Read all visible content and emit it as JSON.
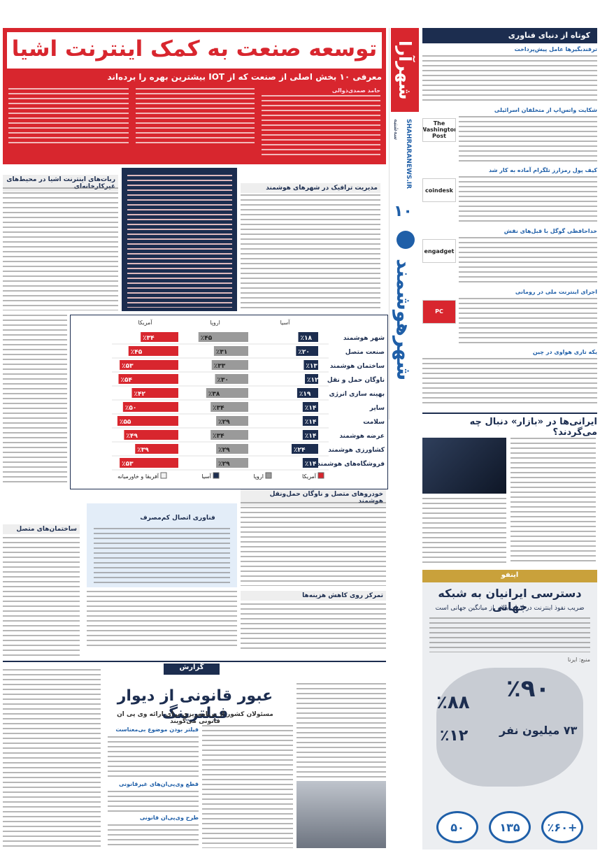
{
  "masthead": {
    "logo": "شهرآرا",
    "section": "شهرهوشمند",
    "page": "۱۰",
    "day": "سه‌شنبه",
    "site": "SHAHRARANEWS.IR"
  },
  "sidebar": {
    "title": "کوتاه از دنیای فناوری",
    "items": [
      {
        "title": "ترفندبگیرها عامل پیش‌پرداخت"
      },
      {
        "title": "شکایت واتس‌اپ از متخلفان اسرائیلی",
        "logo": "The Washington Post"
      },
      {
        "title": "کیف پول رمزارز تلگرام آماده به کار شد",
        "logo": "coindesk"
      },
      {
        "title": "خداحافظی گوگل با قبل‌های نقش",
        "logo": "engadget"
      },
      {
        "title": "اجرای اینترنت ملی در رومانی",
        "logo": "PC"
      },
      {
        "title": "یکه تازی هواوی در چین"
      }
    ]
  },
  "main": {
    "title": "توسعه صنعت به کمک اینترنت اشیا",
    "subtitle": "معرفی ۱۰ بخش اصلی از صنعت که از IOT بیشترین بهره را برده‌اند",
    "byline": "حامد صمدی‌ذوالی",
    "sections": [
      "مدیریت ترافیک در شهرهای هوشمند",
      "ربات‌های اینترنت اشیا در محیط‌های غیرکارخانه‌ای",
      "خودروهای متصل و ناوگان حمل‌ونقل هوشمند",
      "فناوری اتصال کم‌مصرف",
      "ساختمان‌های متصل",
      "تمرکز روی کاهش هزینه‌ها"
    ]
  },
  "chart_data": {
    "type": "bar",
    "orientation": "horizontal",
    "categories": [
      "شهر هوشمند",
      "صنعت متصل",
      "ساختمان هوشمند",
      "ناوگان حمل و نقل",
      "بهینه سازی انرژی",
      "سایر",
      "سلامت",
      "عرضه هوشمند",
      "کشاورزی هوشمند",
      "فروشگاه‌های هوشمند"
    ],
    "series": [
      {
        "name": "آمریکا",
        "color": "#d8262e",
        "values": [
          34,
          45,
          53,
          54,
          42,
          50,
          55,
          49,
          39,
          53
        ],
        "value_labels": [
          "٪۳۴",
          "٪۴۵",
          "٪۵۳",
          "٪۵۴",
          "٪۴۲",
          "٪۵۰",
          "٪۵۵",
          "٪۴۹",
          "٪۳۹",
          "٪۵۳"
        ]
      },
      {
        "name": "اروپا",
        "color": "#9a9a9a",
        "values": [
          45,
          31,
          33,
          30,
          38,
          34,
          29,
          34,
          29,
          29
        ],
        "value_labels": [
          "٪۴۵",
          "٪۳۱",
          "٪۳۳",
          "٪۳۰",
          "٪۳۸",
          "٪۳۴",
          "٪۲۹",
          "٪۳۴",
          "٪۲۹",
          "٪۲۹"
        ]
      },
      {
        "name": "آسیا",
        "color": "#1c2d4f",
        "values": [
          18,
          20,
          13,
          12,
          19,
          14,
          14,
          14,
          24,
          14
        ],
        "value_labels": [
          "٪۱۸",
          "٪۲۰",
          "٪۱۳",
          "٪۱۲",
          "٪۱۹",
          "٪۱۴",
          "٪۱۴",
          "٪۱۴",
          "٪۲۴",
          "٪۱۴"
        ]
      },
      {
        "name": "آفریقا و خاورمیانه",
        "color": "#f2f2f2",
        "values": [
          null,
          null,
          null,
          null,
          null,
          null,
          null,
          null,
          null,
          null
        ]
      }
    ],
    "xlim": [
      0,
      60
    ]
  },
  "bazaar": {
    "title": "ایرانی‌ها در «بازار» دنبال چه می‌گردند؟"
  },
  "report": {
    "kicker": "گزارش",
    "title": "عبور قانونی از دیوار فیلترینگ",
    "subtitle": "مسئولان کشور از برنامه‌ریزی برای ارائه وی پی ان قانونی می‌گویند",
    "subheads": [
      "فیلتر بودن موضوع بی‌معناست",
      "قطع وی‌پی‌ان‌های غیرقانونی",
      "طرح وی‌پی‌ان قانونی"
    ]
  },
  "infographic": {
    "kicker": "اینفو",
    "title": "دسترسی ایرانیان به شبکه جهانی",
    "subtitle": "ضریب نفوذ اینترنت در ایران بالاتر از میانگین جهانی است",
    "source": "منبع: ایرنا",
    "stats": [
      "٪۹۰",
      "٪۸۸",
      "۷۳ میلیون نفر",
      "٪۱۲",
      "+٪۶۰",
      "۱۳۵",
      "۵۰"
    ]
  }
}
